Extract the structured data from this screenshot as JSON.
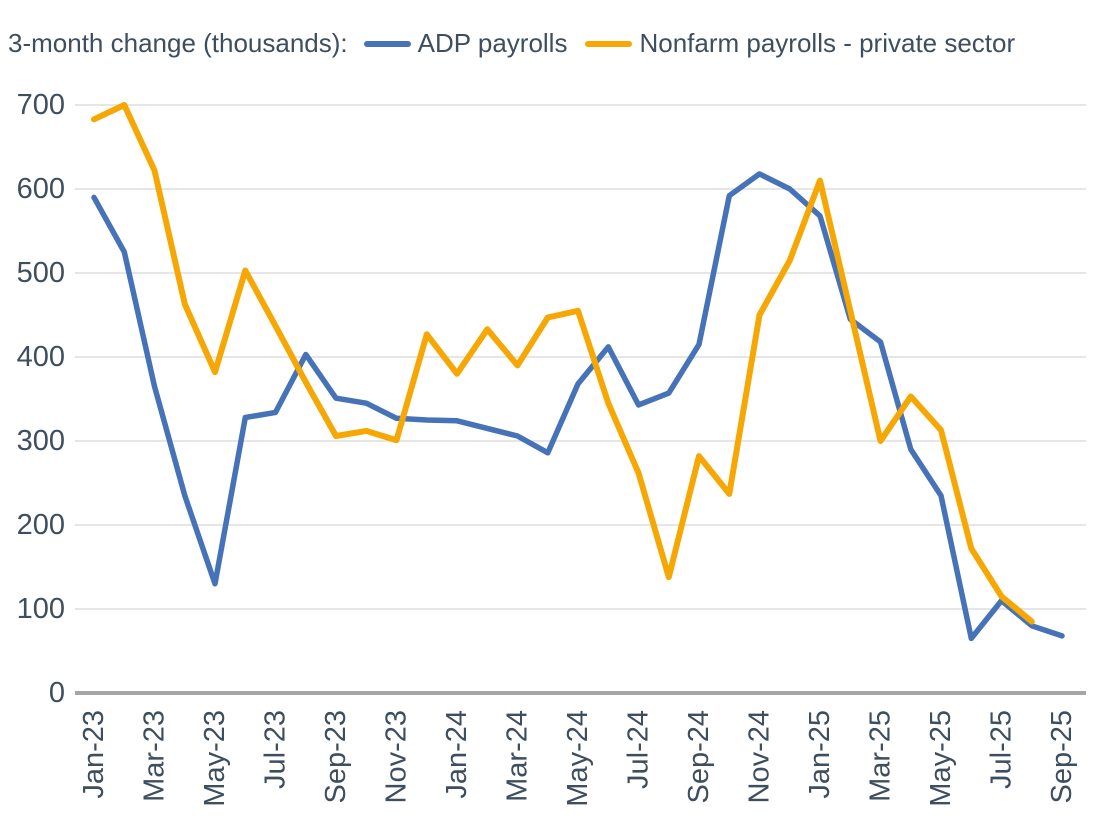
{
  "header": {
    "title": "3-month change (thousands):",
    "legend": [
      {
        "label": "ADP payrolls",
        "color": "#4673b8"
      },
      {
        "label": "Nonfarm payrolls - private sector",
        "color": "#f6a704"
      }
    ]
  },
  "chart_data": {
    "type": "line",
    "title": "3-month change (thousands):",
    "xlabel": "",
    "ylabel": "",
    "ylim": [
      0,
      700
    ],
    "ytick_step": 100,
    "grid": "horizontal",
    "legend_position": "top",
    "x_tick_every": 2,
    "categories": [
      "Jan-23",
      "Feb-23",
      "Mar-23",
      "Apr-23",
      "May-23",
      "Jun-23",
      "Jul-23",
      "Aug-23",
      "Sep-23",
      "Oct-23",
      "Nov-23",
      "Dec-23",
      "Jan-24",
      "Feb-24",
      "Mar-24",
      "Apr-24",
      "May-24",
      "Jun-24",
      "Jul-24",
      "Aug-24",
      "Sep-24",
      "Oct-24",
      "Nov-24",
      "Dec-24",
      "Jan-25",
      "Feb-25",
      "Mar-25",
      "Apr-25",
      "May-25",
      "Jun-25",
      "Jul-25",
      "Aug-25",
      "Sep-25"
    ],
    "series": [
      {
        "name": "ADP payrolls",
        "color": "#4673b8",
        "stroke_width": 5.5,
        "values": [
          590,
          525,
          365,
          235,
          130,
          328,
          334,
          403,
          351,
          345,
          327,
          325,
          324,
          315,
          306,
          286,
          368,
          412,
          343,
          357,
          415,
          592,
          618,
          600,
          568,
          445,
          418,
          290,
          235,
          65,
          110,
          80,
          68
        ]
      },
      {
        "name": "Nonfarm payrolls - private sector",
        "color": "#f6a704",
        "stroke_width": 6,
        "values": [
          683,
          700,
          622,
          463,
          382,
          503,
          437,
          370,
          306,
          312,
          301,
          427,
          380,
          433,
          390,
          447,
          455,
          345,
          262,
          138,
          282,
          237,
          450,
          515,
          610,
          455,
          300,
          353,
          313,
          172,
          115,
          85,
          null
        ]
      }
    ]
  },
  "style": {
    "gridline_color": "#d8d8d8",
    "axis_line_color": "#a6a6a6",
    "tick_text_color": "#3e4e5f"
  }
}
